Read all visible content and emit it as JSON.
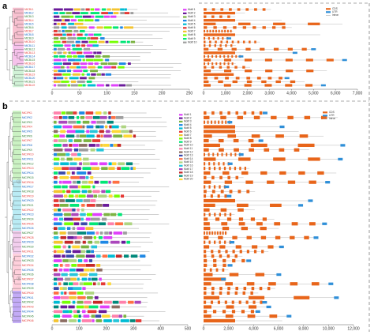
{
  "colors": {
    "motifs": [
      "#e040fb",
      "#6a1b9a",
      "#7cb342",
      "#1e88e5",
      "#00bcd4",
      "#e53935",
      "#f4c430",
      "#76ff03",
      "#00e676",
      "#9e9e9e",
      "#ff80ab",
      "#8d6e63",
      "#3949ab",
      "#ff7043",
      "#aed581",
      "#26c6da",
      "#ab47bc",
      "#c62828",
      "#00897b",
      "#fdd835"
    ],
    "cds": "#e8651a",
    "utr": "#2f8fd8",
    "intron": "#999999",
    "clade_a": [
      "#f7b6c8",
      "#c9f0d0",
      "#f5f0a8"
    ],
    "clade_b": [
      "#c2f0b8",
      "#aee7f2",
      "#f0c6ea",
      "#ffc8d6",
      "#b89cf5"
    ],
    "leaf_colors": [
      "#e53935",
      "#1565c0",
      "#2e7d32"
    ]
  },
  "panel_a": {
    "letter": "a",
    "genes": [
      "MtCBL1",
      "MtCBL2",
      "MtCBL3",
      "MtCBL4",
      "MtCBL5",
      "MtCBL6",
      "MtCBL7",
      "MtCBL8",
      "MtCBL9",
      "MtCBL10",
      "MtCBL11",
      "MtCBL12",
      "MtCBL13",
      "MtCBL14",
      "MtCBL15",
      "MtCBL16",
      "MtCBL17",
      "MtCBL18",
      "MtCBL19",
      "MtCBL20",
      "MtCBL21",
      "MtCBL22"
    ],
    "motif_legend": [
      "Motif 1",
      "Motif 2",
      "Motif 3",
      "Motif 4",
      "Motif 5",
      "Motif 6",
      "Motif 7",
      "Motif 8",
      "Motif 9",
      "Motif 10"
    ],
    "motif_axis": [
      "0",
      "50",
      "100",
      "150",
      "200",
      "250"
    ],
    "structure_legend": [
      "CDS",
      "UTR",
      "Intron"
    ],
    "structure_axis": [
      "0",
      "1,000",
      "2,000",
      "3,000",
      "4,000",
      "5,000",
      "6,000",
      "7,000"
    ]
  },
  "panel_b": {
    "letter": "b",
    "genes": [
      "MtCIPK1",
      "MtCIPK2",
      "MtCIPK3",
      "MtCIPK4",
      "MtCIPK5",
      "MtCIPK6",
      "MtCIPK7",
      "MtCIPK8",
      "MtCIPK9",
      "MtCIPK10",
      "MtCIPK11",
      "MtCIPK12",
      "MtCIPK13",
      "MtCIPK14",
      "MtCIPK15",
      "MtCIPK16",
      "MtCIPK17",
      "MtCIPK18",
      "MtCIPK19",
      "MtCIPK20",
      "MtCIPK21",
      "MtCIPK22",
      "MtCIPK23",
      "MtCIPK24",
      "MtCIPK25",
      "MtCIPK26",
      "MtCIPK27",
      "MtCIPK28",
      "MtCIPK29",
      "MtCIPK30",
      "MtCIPK31",
      "MtCIPK32",
      "MtCIPK33",
      "MtCIPK34",
      "MtCIPK35",
      "MtCIPK36",
      "MtCIPK37",
      "MtCIPK38",
      "MtCIPK39",
      "MtCIPK40",
      "MtCIPK41",
      "MtCIPK42",
      "MtCIPK43",
      "MtCIPK44",
      "MtCIPK45",
      "MtCIPK46"
    ],
    "clade_labels": [
      "I",
      "II"
    ],
    "motif_legend": [
      "Motif 1",
      "Motif 2",
      "Motif 3",
      "Motif 4",
      "Motif 5",
      "Motif 6",
      "Motif 7",
      "Motif 8",
      "Motif 9",
      "Motif 10",
      "Motif 11",
      "Motif 12",
      "Motif 13",
      "Motif 14",
      "Motif 15",
      "Motif 16",
      "Motif 17",
      "Motif 18",
      "Motif 19",
      "Motif 20"
    ],
    "motif_axis": [
      "0",
      "100",
      "200",
      "300",
      "400",
      "500"
    ],
    "structure_legend": [
      "CDS",
      "UTR",
      "Intron"
    ],
    "structure_axis": [
      "0",
      "2,000",
      "4,000",
      "6,000",
      "8,000",
      "10,000",
      "12,000"
    ]
  }
}
